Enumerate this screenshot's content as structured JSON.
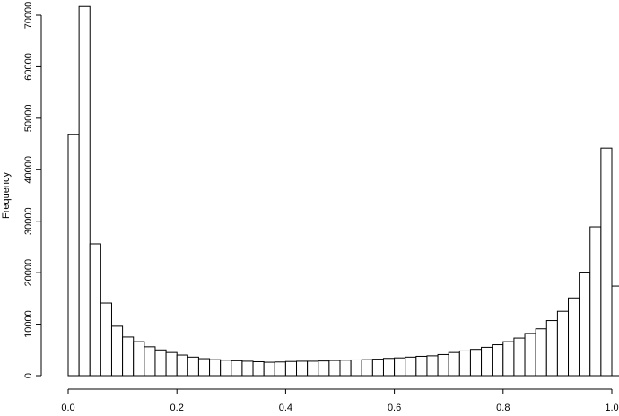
{
  "chart_data": {
    "type": "bar",
    "variant": "histogram",
    "title": "",
    "xlabel": "",
    "ylabel": "Frequency",
    "xlim": [
      0,
      1
    ],
    "ylim": [
      0,
      70000
    ],
    "bin_width": 0.02,
    "x_ticks": [
      0.0,
      0.2,
      0.4,
      0.6,
      0.8,
      1.0
    ],
    "x_tick_labels": [
      "0.0",
      "0.2",
      "0.4",
      "0.6",
      "0.8",
      "1.0"
    ],
    "y_ticks": [
      0,
      10000,
      20000,
      30000,
      40000,
      50000,
      60000,
      70000
    ],
    "y_tick_labels": [
      "0",
      "10000",
      "20000",
      "30000",
      "40000",
      "50000",
      "60000",
      "70000"
    ],
    "grid": false,
    "legend": "none",
    "bar_fill": "#ffffff",
    "bar_stroke": "#000000",
    "values": [
      46800,
      71700,
      25600,
      14100,
      9600,
      7500,
      6600,
      5600,
      5000,
      4500,
      4000,
      3600,
      3300,
      3100,
      3000,
      2900,
      2800,
      2700,
      2600,
      2650,
      2750,
      2800,
      2800,
      2850,
      2950,
      3000,
      3050,
      3100,
      3200,
      3350,
      3450,
      3600,
      3750,
      3850,
      4100,
      4500,
      4800,
      5100,
      5500,
      6000,
      6600,
      7300,
      8200,
      9100,
      10700,
      12500,
      15100,
      20100,
      28900,
      44200,
      17400
    ]
  }
}
